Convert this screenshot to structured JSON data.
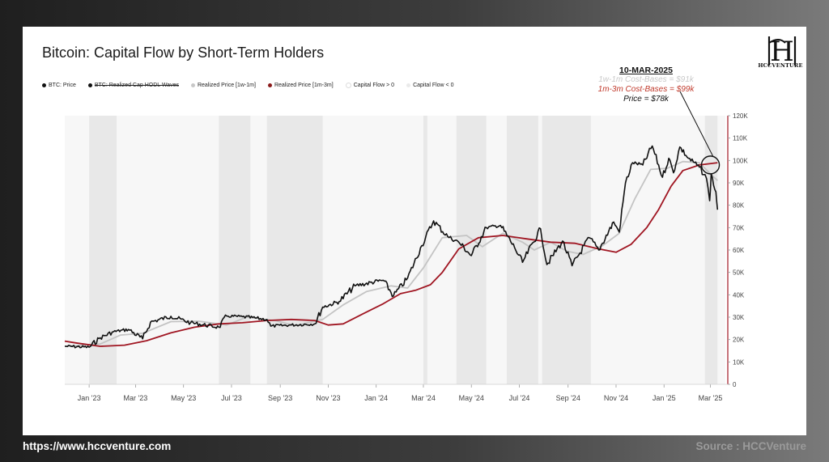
{
  "title": "Bitcoin: Capital Flow by Short-Term Holders",
  "logo_text": "HCCVENTURE",
  "legend": [
    {
      "label": "BTC: Price",
      "color": "#111111",
      "strike": false
    },
    {
      "label": "BTC: Realized Cap HODL Waves",
      "color": "#111111",
      "strike": true
    },
    {
      "label": "Realized Price [1w-1m]",
      "color": "#c8c8c8",
      "strike": false
    },
    {
      "label": "Realized Price [1m-3m]",
      "color": "#8b1a1a",
      "strike": false
    },
    {
      "label": "Capital Flow > 0",
      "color": "#ffffff",
      "strike": false
    },
    {
      "label": "Capital Flow < 0",
      "color": "#eaeaea",
      "strike": false
    }
  ],
  "annotation": {
    "title": "10-MAR-2025",
    "line1": "1w-1m Cost-Bases = $91k",
    "line2": "1m-3m Cost-Bases = $99k",
    "line3": "Price = $78k"
  },
  "footer": {
    "url": "https://www.hccventure.com",
    "source": "Source : HCCVenture"
  },
  "colors": {
    "price": "#111111",
    "rp_short": "#c4c4c4",
    "rp_long": "#a01622",
    "neg_flow": "#e8e8e8",
    "pos_flow": "#f7f7f7"
  },
  "chart_data": {
    "type": "line",
    "x_ticks": [
      "Jan '23",
      "Mar '23",
      "May '23",
      "Jul '23",
      "Sep '23",
      "Nov '23",
      "Jan '24",
      "Mar '24",
      "May '24",
      "Jul '24",
      "Sep '24",
      "Nov '24",
      "Jan '25",
      "Mar '25"
    ],
    "y_ticks": [
      "0",
      "10K",
      "20K",
      "30K",
      "40K",
      "50K",
      "60K",
      "70K",
      "80K",
      "90K",
      "100K",
      "110K",
      "120K"
    ],
    "ylim": [
      0,
      120000
    ],
    "xlim": [
      "2022-12-01",
      "2025-03-20"
    ],
    "series": [
      {
        "name": "BTC: Price",
        "points": [
          [
            "2022-12-01",
            17000
          ],
          [
            "2023-01-01",
            16600
          ],
          [
            "2023-01-15",
            20800
          ],
          [
            "2023-02-01",
            23500
          ],
          [
            "2023-02-20",
            24500
          ],
          [
            "2023-03-10",
            20300
          ],
          [
            "2023-03-20",
            27800
          ],
          [
            "2023-04-15",
            30400
          ],
          [
            "2023-05-10",
            27500
          ],
          [
            "2023-06-15",
            25500
          ],
          [
            "2023-06-25",
            30500
          ],
          [
            "2023-07-15",
            30200
          ],
          [
            "2023-08-15",
            29000
          ],
          [
            "2023-08-20",
            26000
          ],
          [
            "2023-09-15",
            26500
          ],
          [
            "2023-10-15",
            27000
          ],
          [
            "2023-10-25",
            34500
          ],
          [
            "2023-11-15",
            37000
          ],
          [
            "2023-12-05",
            44000
          ],
          [
            "2024-01-10",
            46500
          ],
          [
            "2024-01-23",
            39500
          ],
          [
            "2024-02-10",
            47500
          ],
          [
            "2024-02-28",
            62000
          ],
          [
            "2024-03-14",
            73000
          ],
          [
            "2024-04-01",
            66000
          ],
          [
            "2024-04-15",
            63500
          ],
          [
            "2024-05-01",
            57500
          ],
          [
            "2024-05-20",
            70000
          ],
          [
            "2024-06-07",
            71000
          ],
          [
            "2024-06-25",
            61000
          ],
          [
            "2024-07-05",
            54500
          ],
          [
            "2024-07-28",
            69500
          ],
          [
            "2024-08-05",
            53500
          ],
          [
            "2024-08-25",
            64000
          ],
          [
            "2024-09-06",
            53000
          ],
          [
            "2024-09-28",
            65500
          ],
          [
            "2024-10-10",
            60000
          ],
          [
            "2024-10-29",
            72500
          ],
          [
            "2024-11-05",
            68000
          ],
          [
            "2024-11-13",
            90000
          ],
          [
            "2024-11-22",
            99000
          ],
          [
            "2024-12-05",
            98000
          ],
          [
            "2024-12-17",
            106500
          ],
          [
            "2024-12-30",
            92500
          ],
          [
            "2025-01-07",
            101000
          ],
          [
            "2025-01-13",
            94500
          ],
          [
            "2025-01-21",
            106000
          ],
          [
            "2025-02-01",
            101000
          ],
          [
            "2025-02-15",
            97000
          ],
          [
            "2025-02-24",
            92000
          ],
          [
            "2025-02-28",
            82000
          ],
          [
            "2025-03-02",
            94000
          ],
          [
            "2025-03-05",
            89000
          ],
          [
            "2025-03-08",
            86000
          ],
          [
            "2025-03-10",
            78000
          ]
        ]
      },
      {
        "name": "Realized Price [1w-1m]",
        "points": [
          [
            "2022-12-01",
            17000
          ],
          [
            "2023-01-15",
            18000
          ],
          [
            "2023-02-10",
            22000
          ],
          [
            "2023-03-10",
            22800
          ],
          [
            "2023-04-15",
            28000
          ],
          [
            "2023-05-20",
            28200
          ],
          [
            "2023-06-25",
            26500
          ],
          [
            "2023-07-20",
            30000
          ],
          [
            "2023-08-25",
            28500
          ],
          [
            "2023-09-20",
            26200
          ],
          [
            "2023-10-25",
            29000
          ],
          [
            "2023-11-20",
            35500
          ],
          [
            "2023-12-20",
            41500
          ],
          [
            "2024-01-20",
            44000
          ],
          [
            "2024-02-10",
            43000
          ],
          [
            "2024-03-01",
            52000
          ],
          [
            "2024-03-25",
            65500
          ],
          [
            "2024-04-25",
            66500
          ],
          [
            "2024-05-15",
            61500
          ],
          [
            "2024-06-10",
            67500
          ],
          [
            "2024-07-05",
            63500
          ],
          [
            "2024-07-20",
            60000
          ],
          [
            "2024-08-10",
            63500
          ],
          [
            "2024-08-30",
            59500
          ],
          [
            "2024-09-20",
            58000
          ],
          [
            "2024-10-15",
            62000
          ],
          [
            "2024-11-05",
            67500
          ],
          [
            "2024-11-25",
            83000
          ],
          [
            "2024-12-15",
            96000
          ],
          [
            "2025-01-05",
            96500
          ],
          [
            "2025-01-25",
            99500
          ],
          [
            "2025-02-15",
            99000
          ],
          [
            "2025-03-01",
            94000
          ],
          [
            "2025-03-10",
            91000
          ]
        ]
      },
      {
        "name": "Realized Price [1m-3m]",
        "points": [
          [
            "2022-12-01",
            19300
          ],
          [
            "2022-12-15",
            18500
          ],
          [
            "2023-01-15",
            17000
          ],
          [
            "2023-02-15",
            17500
          ],
          [
            "2023-03-15",
            19500
          ],
          [
            "2023-04-15",
            23000
          ],
          [
            "2023-05-15",
            25500
          ],
          [
            "2023-06-15",
            27000
          ],
          [
            "2023-07-15",
            27500
          ],
          [
            "2023-08-15",
            28500
          ],
          [
            "2023-09-15",
            29000
          ],
          [
            "2023-10-15",
            28500
          ],
          [
            "2023-11-01",
            26500
          ],
          [
            "2023-11-20",
            27000
          ],
          [
            "2023-12-15",
            31500
          ],
          [
            "2024-01-10",
            36000
          ],
          [
            "2024-02-01",
            40500
          ],
          [
            "2024-02-20",
            42000
          ],
          [
            "2024-03-10",
            44500
          ],
          [
            "2024-03-25",
            50000
          ],
          [
            "2024-04-15",
            60500
          ],
          [
            "2024-05-10",
            65500
          ],
          [
            "2024-06-10",
            66500
          ],
          [
            "2024-07-10",
            65000
          ],
          [
            "2024-08-10",
            63500
          ],
          [
            "2024-09-10",
            63000
          ],
          [
            "2024-10-10",
            60500
          ],
          [
            "2024-11-01",
            59000
          ],
          [
            "2024-11-20",
            62500
          ],
          [
            "2024-12-10",
            70000
          ],
          [
            "2024-12-25",
            78000
          ],
          [
            "2025-01-10",
            88500
          ],
          [
            "2025-01-25",
            95500
          ],
          [
            "2025-02-15",
            98000
          ],
          [
            "2025-03-10",
            99000
          ]
        ]
      }
    ],
    "capital_flow_negative_periods": [
      [
        "2023-01-01",
        "2023-02-05"
      ],
      [
        "2023-06-15",
        "2023-07-25"
      ],
      [
        "2023-08-15",
        "2023-10-25"
      ],
      [
        "2024-03-01",
        "2024-03-06"
      ],
      [
        "2024-04-12",
        "2024-05-20"
      ],
      [
        "2024-06-15",
        "2024-07-25"
      ],
      [
        "2024-07-30",
        "2024-09-30"
      ],
      [
        "2025-02-22",
        "2025-03-10"
      ]
    ],
    "legend_placement": "top-left",
    "grid": false
  }
}
